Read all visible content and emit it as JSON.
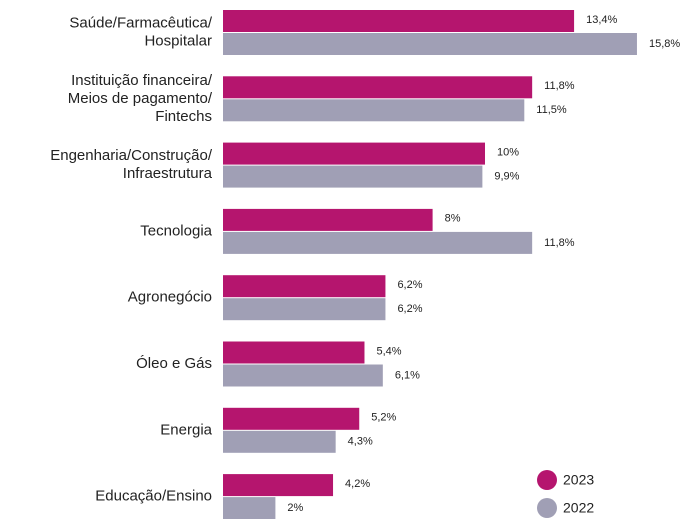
{
  "chart_data": {
    "type": "bar",
    "categories": [
      [
        "Saúde/Farmacêutica/",
        "Hospitalar"
      ],
      [
        "Instituição financeira/",
        "Meios de pagamento/",
        "Fintechs"
      ],
      [
        "Engenharia/Construção/",
        "Infraestrutura"
      ],
      [
        "Tecnologia"
      ],
      [
        "Agronegócio"
      ],
      [
        "Óleo e Gás"
      ],
      [
        "Energia"
      ],
      [
        "Educação/Ensino"
      ]
    ],
    "series": [
      {
        "name": "2023",
        "color": "#b5156e",
        "values": [
          13.4,
          11.8,
          10,
          8,
          6.2,
          5.4,
          5.2,
          4.2
        ],
        "value_labels": [
          "13,4%",
          "11,8%",
          "10%",
          "8%",
          "6,2%",
          "5,4%",
          "5,2%",
          "4,2%"
        ]
      },
      {
        "name": "2022",
        "color": "#a09fb5",
        "values": [
          15.8,
          11.5,
          9.9,
          11.8,
          6.2,
          6.1,
          4.3,
          2
        ],
        "value_labels": [
          "15,8%",
          "11,5%",
          "9,9%",
          "11,8%",
          "6,2%",
          "6,1%",
          "4,3%",
          "2%"
        ]
      }
    ]
  }
}
